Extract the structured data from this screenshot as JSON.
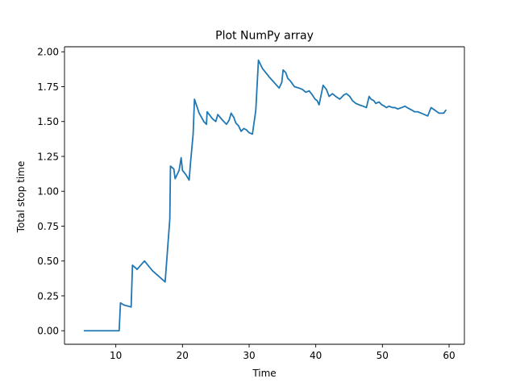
{
  "chart_data": {
    "type": "line",
    "title": "Plot NumPy array",
    "xlabel": "Time",
    "ylabel": "Total stop time",
    "xlim": [
      2.3,
      62.3
    ],
    "ylim": [
      -0.097,
      2.036
    ],
    "xticks": [
      10,
      20,
      30,
      40,
      50,
      60
    ],
    "xtick_labels": [
      "10",
      "20",
      "30",
      "40",
      "50",
      "60"
    ],
    "yticks": [
      0.0,
      0.25,
      0.5,
      0.75,
      1.0,
      1.25,
      1.5,
      1.75,
      2.0
    ],
    "ytick_labels": [
      "0.00",
      "0.25",
      "0.50",
      "0.75",
      "1.00",
      "1.25",
      "1.50",
      "1.75",
      "2.00"
    ],
    "grid": false,
    "line_color": "#1f77b4",
    "series": [
      {
        "x": [
          5.3,
          10.5,
          10.7,
          11.2,
          12.3,
          12.5,
          13.2,
          14.1,
          14.3,
          15.5,
          17.4,
          18.1,
          18.2,
          18.7,
          18.9,
          19.5,
          19.8,
          20.0,
          20.5,
          21.0,
          21.2,
          21.6,
          21.8,
          22.5,
          23.2,
          23.6,
          23.7,
          24.5,
          25.0,
          25.3,
          26.0,
          26.6,
          27.0,
          27.3,
          27.7,
          28.0,
          28.4,
          28.8,
          29.2,
          29.6,
          30.0,
          30.5,
          31.0,
          31.4,
          32.0,
          33.0,
          34.5,
          34.9,
          35.1,
          35.5,
          35.8,
          36.2,
          36.8,
          37.5,
          38.0,
          38.5,
          39.0,
          39.5,
          39.9,
          40.2,
          40.5,
          41.1,
          41.6,
          42.0,
          42.5,
          43.0,
          43.6,
          44.2,
          44.6,
          45.1,
          45.5,
          46.0,
          46.5,
          47.1,
          47.6,
          48.0,
          48.3,
          48.7,
          49.0,
          49.5,
          49.9,
          50.3,
          50.6,
          51.0,
          51.5,
          51.9,
          52.3,
          52.9,
          53.4,
          53.7,
          54.1,
          54.5,
          54.8,
          55.3,
          55.8,
          56.3,
          56.8,
          57.3,
          57.6,
          57.9,
          58.2,
          58.5,
          58.9,
          59.2,
          59.5
        ],
        "y": [
          0.0,
          0.0,
          0.2,
          0.185,
          0.17,
          0.47,
          0.44,
          0.49,
          0.5,
          0.43,
          0.35,
          0.8,
          1.18,
          1.16,
          1.09,
          1.15,
          1.24,
          1.15,
          1.12,
          1.08,
          1.2,
          1.41,
          1.66,
          1.56,
          1.5,
          1.48,
          1.57,
          1.52,
          1.5,
          1.55,
          1.51,
          1.48,
          1.51,
          1.56,
          1.53,
          1.49,
          1.47,
          1.43,
          1.45,
          1.44,
          1.42,
          1.41,
          1.58,
          1.94,
          1.88,
          1.82,
          1.74,
          1.78,
          1.87,
          1.85,
          1.81,
          1.79,
          1.75,
          1.74,
          1.73,
          1.71,
          1.72,
          1.69,
          1.66,
          1.65,
          1.62,
          1.76,
          1.73,
          1.68,
          1.7,
          1.68,
          1.66,
          1.69,
          1.7,
          1.68,
          1.65,
          1.63,
          1.62,
          1.61,
          1.6,
          1.68,
          1.66,
          1.65,
          1.63,
          1.64,
          1.62,
          1.61,
          1.6,
          1.61,
          1.6,
          1.6,
          1.59,
          1.6,
          1.61,
          1.6,
          1.59,
          1.58,
          1.57,
          1.57,
          1.56,
          1.55,
          1.54,
          1.6,
          1.59,
          1.58,
          1.57,
          1.56,
          1.56,
          1.56,
          1.58
        ]
      }
    ]
  }
}
